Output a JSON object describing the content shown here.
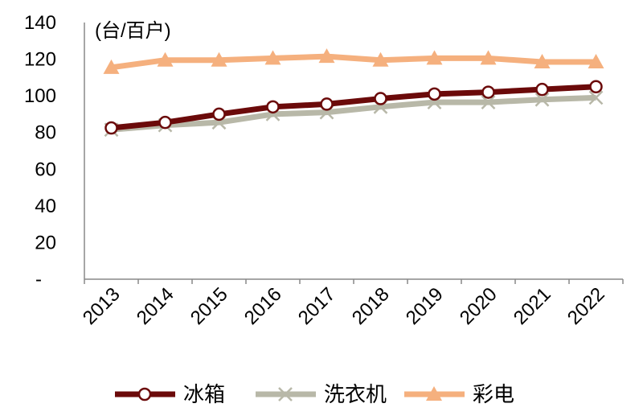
{
  "chart_data": {
    "type": "line",
    "unit_label": "(台/百户)",
    "categories": [
      "2013",
      "2014",
      "2015",
      "2016",
      "2017",
      "2018",
      "2019",
      "2020",
      "2021",
      "2022"
    ],
    "y_ticks": [
      "-",
      "20",
      "40",
      "60",
      "80",
      "100",
      "120",
      "140"
    ],
    "ylim": [
      0,
      140
    ],
    "grid": false,
    "legend_position": "bottom",
    "series": [
      {
        "name": "冰箱",
        "color": "#6b0a0a",
        "marker": "circle",
        "values": [
          82.5,
          85.5,
          90,
          94,
          95.5,
          98.5,
          101,
          102,
          103.5,
          105
        ]
      },
      {
        "name": "洗衣机",
        "color": "#b8b8a8",
        "marker": "x",
        "values": [
          81.5,
          84,
          85.5,
          90,
          91,
          94,
          96.5,
          96.5,
          98,
          99
        ]
      },
      {
        "name": "彩电",
        "color": "#f5b07e",
        "marker": "triangle",
        "values": [
          115.5,
          119.5,
          119.5,
          120.5,
          121.5,
          119.5,
          120.5,
          120.5,
          118.5,
          118.5
        ]
      }
    ]
  }
}
